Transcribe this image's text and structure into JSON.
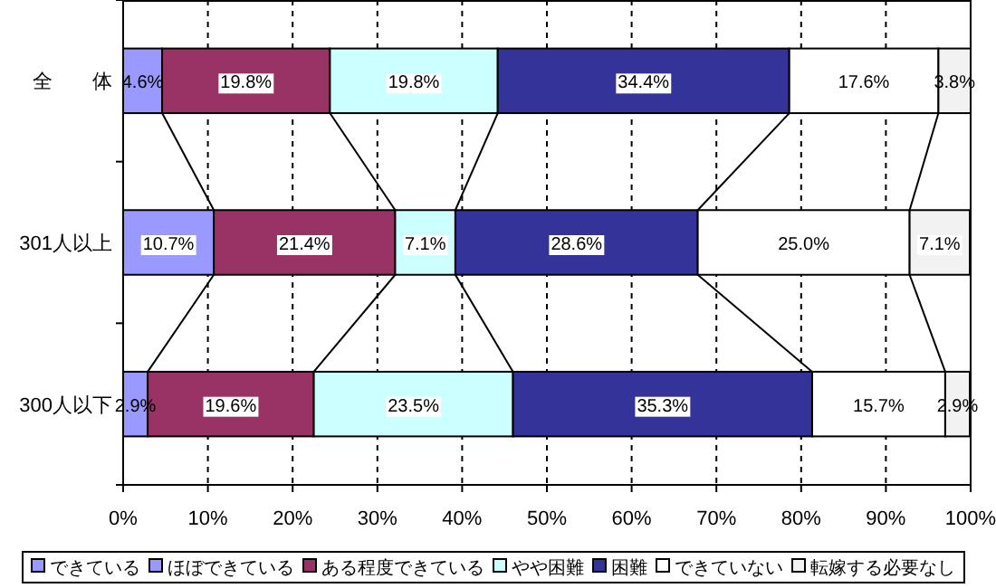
{
  "chart_data": {
    "type": "bar",
    "orientation": "horizontal",
    "stacked": true,
    "categories": [
      "全　　体",
      "301人以上",
      "300人以下"
    ],
    "series": [
      {
        "name": "できている",
        "color": "#9999ff",
        "values": [
          null,
          null,
          null
        ],
        "value_labels": [
          null,
          null,
          null
        ]
      },
      {
        "name": "ほぼできている",
        "color": "#9999ff",
        "values": [
          4.6,
          10.7,
          2.9
        ],
        "value_labels": [
          "4.6%",
          "10.7%",
          "2.9%"
        ]
      },
      {
        "name": "ある程度できている",
        "color": "#993366",
        "values": [
          19.8,
          21.4,
          19.6
        ],
        "value_labels": [
          "19.8%",
          "21.4%",
          "19.6%"
        ]
      },
      {
        "name": "やや困難",
        "color": "#ccffff",
        "values": [
          19.8,
          7.1,
          23.5
        ],
        "value_labels": [
          "19.8%",
          "7.1%",
          "23.5%"
        ]
      },
      {
        "name": "困難",
        "color": "#333399",
        "values": [
          34.4,
          28.6,
          35.3
        ],
        "value_labels": [
          "34.4%",
          "28.6%",
          "35.3%"
        ]
      },
      {
        "name": "できていない",
        "color": "#ffffff",
        "values": [
          17.6,
          25.0,
          15.7
        ],
        "value_labels": [
          "17.6%",
          "25.0%",
          "15.7%"
        ]
      },
      {
        "name": "転嫁する必要なし",
        "color": "#f2f2f2",
        "values": [
          3.8,
          7.1,
          2.9
        ],
        "value_labels": [
          "3.8%",
          "7.1%",
          "2.9%"
        ]
      }
    ],
    "xlim": [
      0,
      100
    ],
    "xticks": [
      {
        "value": 0,
        "label": "0%"
      },
      {
        "value": 10,
        "label": "10%"
      },
      {
        "value": 20,
        "label": "20%"
      },
      {
        "value": 30,
        "label": "30%"
      },
      {
        "value": 40,
        "label": "40%"
      },
      {
        "value": 50,
        "label": "50%"
      },
      {
        "value": 60,
        "label": "60%"
      },
      {
        "value": 70,
        "label": "70%"
      },
      {
        "value": 80,
        "label": "80%"
      },
      {
        "value": 90,
        "label": "90%"
      },
      {
        "value": 100,
        "label": "100%"
      }
    ],
    "grid": "x",
    "legend": "bottom"
  }
}
